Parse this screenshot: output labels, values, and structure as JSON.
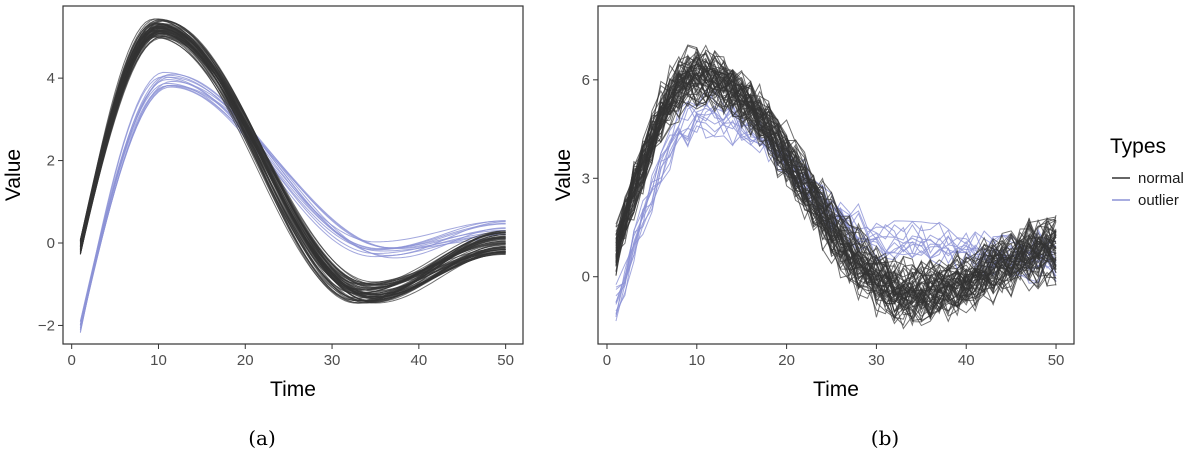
{
  "chart_data": [
    {
      "type": "line",
      "caption": "(a)",
      "xlabel": "Time",
      "ylabel": "Value",
      "xlim": [
        -1,
        52
      ],
      "ylim": [
        -2.45,
        5.75
      ],
      "x_ticks": [
        0,
        10,
        20,
        30,
        40,
        50
      ],
      "y_ticks": [
        -2,
        0,
        2,
        4
      ],
      "x": [
        1,
        50
      ],
      "series": [
        {
          "name": "normal",
          "count": 60,
          "peak_time": 10,
          "peak_value": 5.2,
          "start_value": -0.1,
          "trough_time": 34,
          "trough_value": -1.2,
          "end_value": 0.0,
          "spread": 0.12,
          "noise": 0
        },
        {
          "name": "outlier",
          "count": 12,
          "peak_time": 11,
          "peak_value": 3.95,
          "start_value": -2.05,
          "trough_time": 36,
          "trough_value": -0.15,
          "end_value": 0.3,
          "spread": 0.1,
          "noise": 0
        }
      ],
      "grid": false
    },
    {
      "type": "line",
      "caption": "(b)",
      "xlabel": "Time",
      "ylabel": "Value",
      "xlim": [
        -1,
        52
      ],
      "ylim": [
        -2.05,
        8.25
      ],
      "x_ticks": [
        0,
        10,
        20,
        30,
        40,
        50
      ],
      "y_ticks": [
        0,
        3,
        6
      ],
      "x": [
        1,
        50
      ],
      "series": [
        {
          "name": "normal",
          "count": 60,
          "peak_time": 10,
          "peak_value": 6.1,
          "start_value": 0.8,
          "trough_time": 34,
          "trough_value": -0.5,
          "end_value": 0.8,
          "spread": 0.25,
          "noise": 0.6
        },
        {
          "name": "outlier",
          "count": 12,
          "peak_time": 11,
          "peak_value": 5.0,
          "start_value": -0.8,
          "trough_time": 32,
          "trough_value": 1.0,
          "end_value": 0.6,
          "spread": 0.2,
          "noise": 0.45
        }
      ],
      "grid": false
    }
  ],
  "legend": {
    "title": "Types",
    "placement": "right",
    "items": [
      {
        "label": "normal",
        "color": "#333333"
      },
      {
        "label": "outlier",
        "color": "#8c92d6"
      }
    ]
  },
  "colors": {
    "normal": "#333333",
    "outlier": "#8c92d6"
  }
}
